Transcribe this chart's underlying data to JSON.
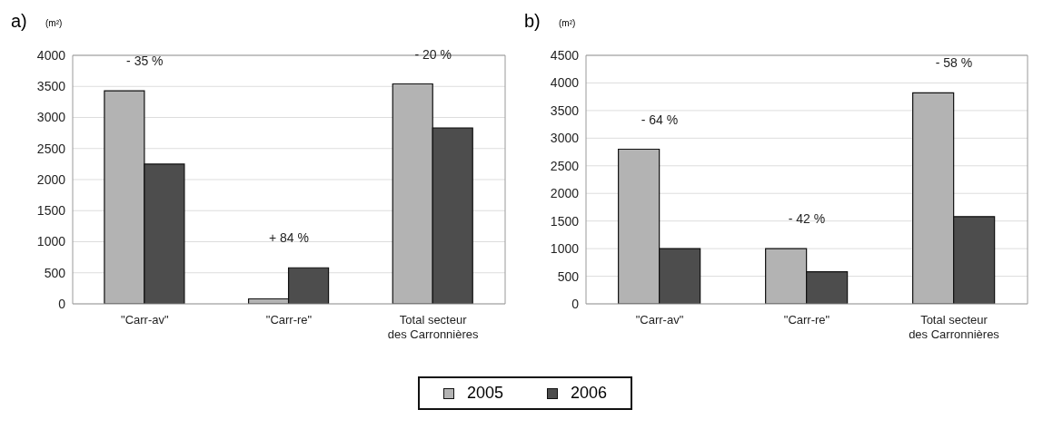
{
  "chart_data": [
    {
      "type": "bar",
      "title": "a)",
      "ylabel": "(m²)",
      "categories": [
        "\"Carr-av\"",
        "\"Carr-re\"",
        "Total secteur des Carronnières"
      ],
      "series": [
        {
          "name": "2005",
          "color": "#b3b3b3",
          "values": [
            3430,
            80,
            3540
          ]
        },
        {
          "name": "2006",
          "color": "#4d4d4d",
          "values": [
            2250,
            580,
            2830
          ]
        }
      ],
      "ylim": [
        0,
        4000
      ],
      "yticks": [
        0,
        500,
        1000,
        1500,
        2000,
        2500,
        3000,
        3500,
        4000
      ],
      "grid": "y",
      "legend": "bottom",
      "annotations": [
        "- 35 %",
        "+ 84 %",
        "- 20 %"
      ]
    },
    {
      "type": "bar",
      "title": "b)",
      "ylabel": "(m²)",
      "categories": [
        "\"Carr-av\"",
        "\"Carr-re\"",
        "Total secteur des Carronnières"
      ],
      "series": [
        {
          "name": "2005",
          "color": "#b3b3b3",
          "values": [
            2800,
            1000,
            3820
          ]
        },
        {
          "name": "2006",
          "color": "#4d4d4d",
          "values": [
            1000,
            580,
            1580
          ]
        }
      ],
      "ylim": [
        0,
        4500
      ],
      "yticks": [
        0,
        500,
        1000,
        1500,
        2000,
        2500,
        3000,
        3500,
        4000,
        4500
      ],
      "grid": "y",
      "legend": "bottom",
      "annotations": [
        "- 64 %",
        "- 42 %",
        "- 58 %"
      ]
    }
  ]
}
